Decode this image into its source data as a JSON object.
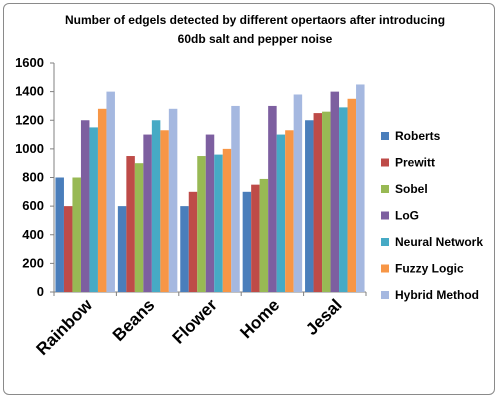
{
  "chart_data": {
    "type": "bar",
    "title_lines": [
      "Number of edgels detected by different opertaors after introducing",
      "60db  salt and pepper noise"
    ],
    "categories": [
      "Rainbow",
      "Beans",
      "Flower",
      "Home",
      "Jesal"
    ],
    "series": [
      {
        "name": "Roberts",
        "color": "#4a7ebb",
        "values": [
          800,
          600,
          600,
          700,
          1200
        ]
      },
      {
        "name": "Prewitt",
        "color": "#be4b48",
        "values": [
          600,
          950,
          700,
          750,
          1250
        ]
      },
      {
        "name": "Sobel",
        "color": "#98b954",
        "values": [
          800,
          900,
          950,
          790,
          1260
        ]
      },
      {
        "name": "LoG",
        "color": "#7d5fa0",
        "values": [
          1200,
          1100,
          1100,
          1300,
          1400
        ]
      },
      {
        "name": "Neural Network",
        "color": "#46aac5",
        "values": [
          1150,
          1200,
          960,
          1100,
          1290
        ]
      },
      {
        "name": "Fuzzy Logic",
        "color": "#f79646",
        "values": [
          1280,
          1130,
          1000,
          1130,
          1350
        ]
      },
      {
        "name": "Hybrid Method",
        "color": "#a5b8e0",
        "values": [
          1400,
          1280,
          1300,
          1380,
          1450
        ]
      }
    ],
    "yticks": [
      "0",
      "200",
      "400",
      "600",
      "800",
      "1000",
      "1200",
      "1400",
      "1600"
    ],
    "ylim": [
      0,
      1600
    ],
    "grid": false,
    "legend_position": "right"
  }
}
